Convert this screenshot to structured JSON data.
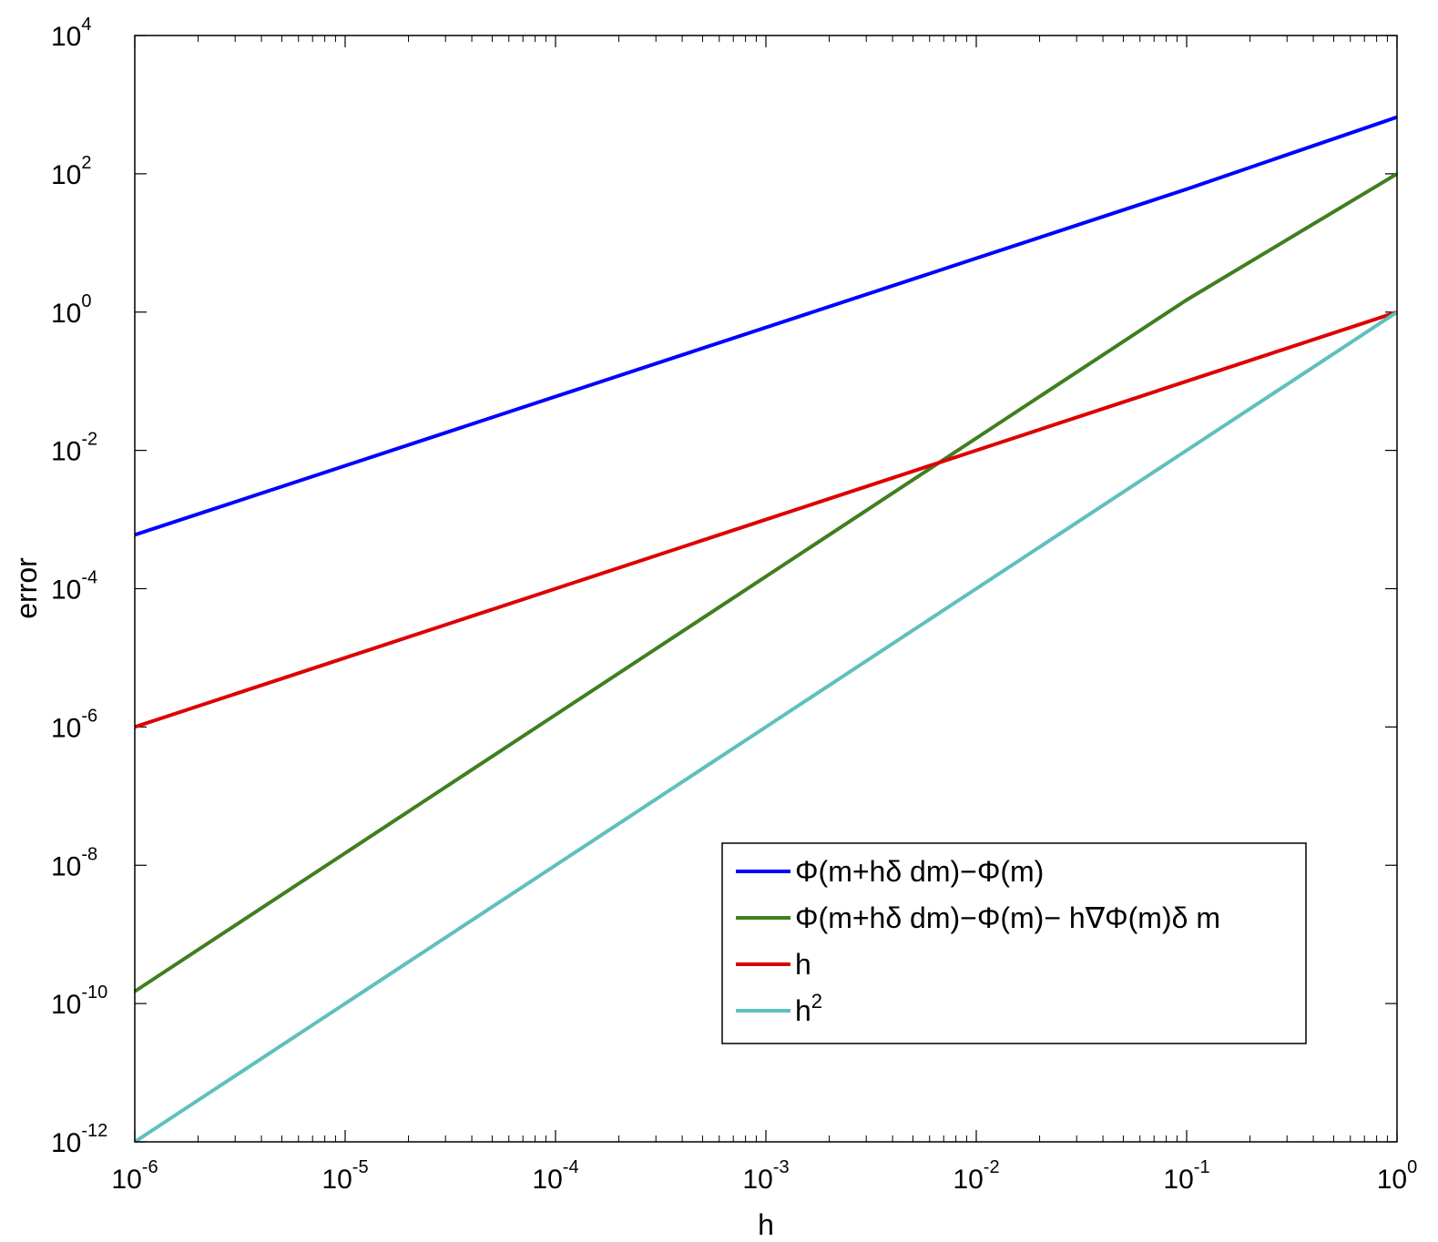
{
  "chart_data": {
    "type": "line",
    "title": "",
    "xlabel": "h",
    "ylabel": "error",
    "xscale": "log",
    "yscale": "log",
    "xlim": [
      1e-06,
      1
    ],
    "ylim": [
      1e-12,
      10000
    ],
    "grid": false,
    "legend_position": "lower-right",
    "x_tick_labels": [
      {
        "base": "10",
        "exp": "-6"
      },
      {
        "base": "10",
        "exp": "-5"
      },
      {
        "base": "10",
        "exp": "-4"
      },
      {
        "base": "10",
        "exp": "-3"
      },
      {
        "base": "10",
        "exp": "-2"
      },
      {
        "base": "10",
        "exp": "-1"
      },
      {
        "base": "10",
        "exp": "0"
      }
    ],
    "y_tick_labels": [
      {
        "base": "10",
        "exp": "-12"
      },
      {
        "base": "10",
        "exp": "-10"
      },
      {
        "base": "10",
        "exp": "-8"
      },
      {
        "base": "10",
        "exp": "-6"
      },
      {
        "base": "10",
        "exp": "-4"
      },
      {
        "base": "10",
        "exp": "-2"
      },
      {
        "base": "10",
        "exp": "0"
      },
      {
        "base": "10",
        "exp": "2"
      },
      {
        "base": "10",
        "exp": "4"
      }
    ],
    "x": [
      1e-06,
      1e-05,
      0.0001,
      0.001,
      0.01,
      0.1,
      1
    ],
    "series": [
      {
        "name": "Φ(m+hδ dm)−Φ(m)",
        "color": "#0000ff",
        "values": [
          0.0006,
          0.006,
          0.06,
          0.6,
          6,
          60,
          660
        ]
      },
      {
        "name": "Φ(m+hδ dm)−Φ(m)− h∇Φ(m)δ m",
        "color": "#3f7f1f",
        "values": [
          1.5e-10,
          1.5e-08,
          1.5e-06,
          0.00015,
          0.015,
          1.5,
          100
        ]
      },
      {
        "name": "h",
        "color": "#dd0000",
        "values": [
          1e-06,
          1e-05,
          0.0001,
          0.001,
          0.01,
          0.1,
          1
        ]
      },
      {
        "name": "h",
        "name_sup": "2",
        "color": "#5fbfbf",
        "values": [
          1e-12,
          1e-10,
          1e-08,
          1e-06,
          0.0001,
          0.01,
          1
        ]
      }
    ]
  }
}
